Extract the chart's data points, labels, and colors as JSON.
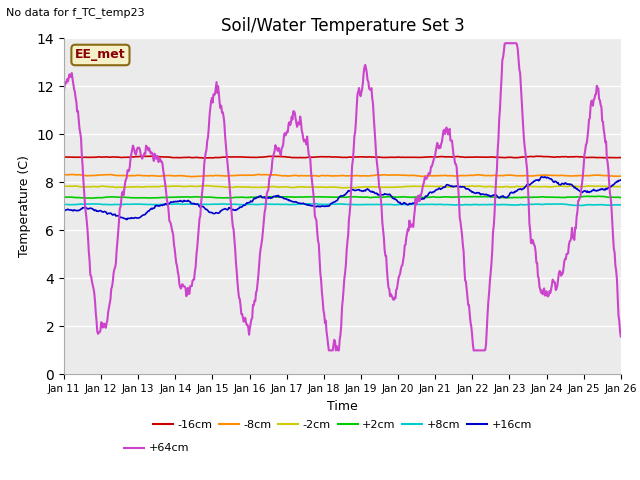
{
  "title": "Soil/Water Temperature Set 3",
  "xlabel": "Time",
  "ylabel": "Temperature (C)",
  "ylim": [
    0,
    14
  ],
  "yticks": [
    0,
    2,
    4,
    6,
    8,
    10,
    12,
    14
  ],
  "date_labels": [
    "Jan 11",
    "Jan 12",
    "Jan 13",
    "Jan 14",
    "Jan 15",
    "Jan 16",
    "Jan 17",
    "Jan 18",
    "Jan 19",
    "Jan 20",
    "Jan 21",
    "Jan 22",
    "Jan 23",
    "Jan 24",
    "Jan 25",
    "Jan 26"
  ],
  "no_data_text": "No data for f_TC_temp23",
  "station_label": "EE_met",
  "background_color": "#e8e8e8",
  "plot_bg": "#ebebeb",
  "colors": {
    "-16cm": "#cc0000",
    "-8cm": "#ff8c00",
    "-2cm": "#cccc00",
    "+2cm": "#00cc00",
    "+8cm": "#00cccc",
    "+16cm": "#0000cc",
    "+64cm": "#cc44cc"
  },
  "figsize": [
    6.4,
    4.8
  ],
  "dpi": 100
}
